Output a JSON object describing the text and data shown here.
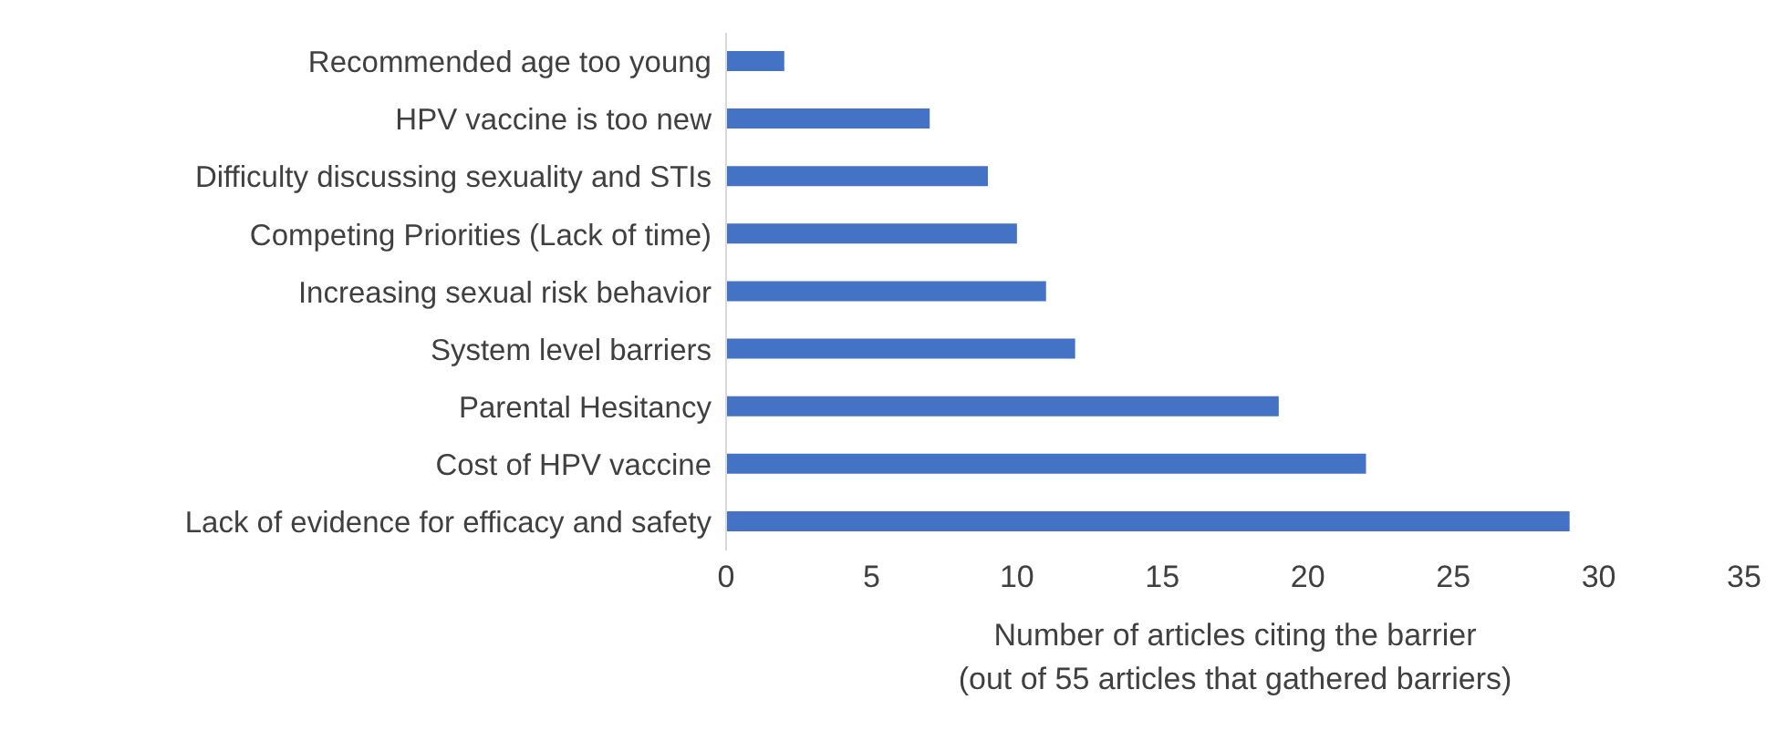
{
  "chart_data": {
    "type": "bar",
    "orientation": "horizontal",
    "categories": [
      "Recommended age too young",
      "HPV vaccine is too new",
      "Difficulty discussing sexuality and STIs",
      "Competing Priorities (Lack of time)",
      "Increasing sexual risk behavior",
      "System level barriers",
      "Parental Hesitancy",
      "Cost of HPV vaccine",
      "Lack of evidence for efficacy and safety"
    ],
    "values": [
      2,
      7,
      9,
      10,
      11,
      12,
      19,
      22,
      29
    ],
    "color": "#4472c4",
    "xlim": [
      0,
      35
    ],
    "xticks": [
      0,
      5,
      10,
      15,
      20,
      25,
      30,
      35
    ],
    "xlabel": "Number of articles citing the barrier\n(out of 55 articles that gathered barriers)",
    "grid": false,
    "legend": false
  }
}
